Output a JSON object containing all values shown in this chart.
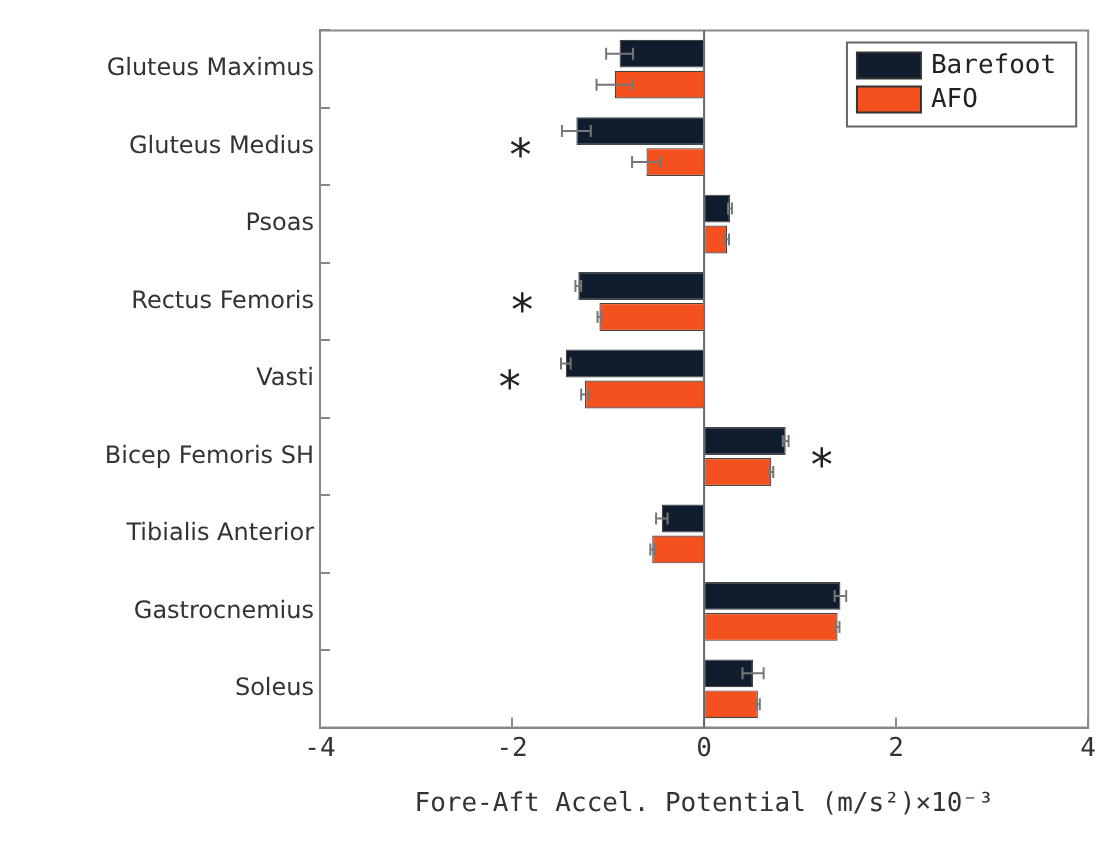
{
  "chart_data": {
    "type": "bar",
    "orientation": "horizontal",
    "xlabel": "Fore-Aft Accel. Potential (m/s²)×10⁻³",
    "categories": [
      "Gluteus Maximus",
      "Gluteus Medius",
      "Psoas",
      "Rectus Femoris",
      "Vasti",
      "Bicep Femoris SH",
      "Tibialis Anterior",
      "Gastrocnemius",
      "Soleus"
    ],
    "series": [
      {
        "name": "Barefoot",
        "color": "#0f1d2e",
        "values": [
          -0.88,
          -1.33,
          0.27,
          -1.31,
          -1.44,
          0.85,
          -0.44,
          1.42,
          0.51
        ],
        "errors": [
          0.14,
          0.15,
          0.02,
          0.03,
          0.05,
          0.03,
          0.06,
          0.06,
          0.11
        ]
      },
      {
        "name": "AFO",
        "color": "#f4511e",
        "values": [
          -0.93,
          -0.6,
          0.24,
          -1.09,
          -1.24,
          0.7,
          -0.54,
          1.39,
          0.56
        ],
        "errors": [
          0.19,
          0.15,
          0.02,
          0.02,
          0.04,
          0.02,
          0.02,
          0.02,
          0.02
        ]
      }
    ],
    "xlim": [
      -4,
      4
    ],
    "xticks": [
      -4,
      -2,
      0,
      2,
      4
    ],
    "grid": false,
    "legend": "top right",
    "ref_lines": [
      {
        "axis": "x",
        "value": 0,
        "color": "#666666"
      }
    ],
    "annotations": [
      {
        "text": "*",
        "x": -1.33,
        "y": "Gluteus Medius"
      },
      {
        "text": "*",
        "x": -1.31,
        "y": "Rectus Femoris"
      },
      {
        "text": "*",
        "x": -1.44,
        "y": "Vasti"
      },
      {
        "text": "*",
        "x": 0.85,
        "y": "Bicep Femoris SH"
      }
    ]
  }
}
